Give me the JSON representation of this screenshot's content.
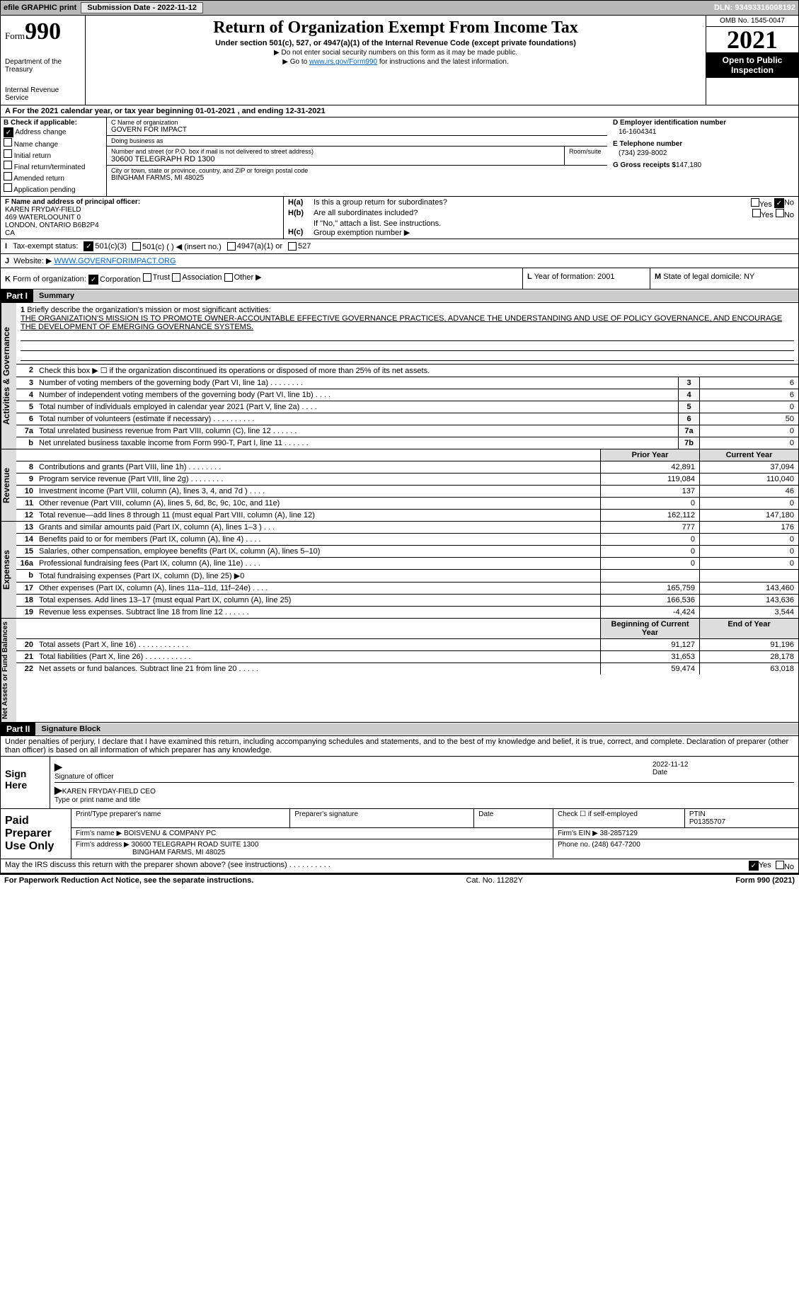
{
  "topbar": {
    "efile": "efile GRAPHIC print",
    "submission_label": "Submission Date - 2022-11-12",
    "dln": "DLN: 93493316008192"
  },
  "header": {
    "form_prefix": "Form",
    "form_number": "990",
    "dept": "Department of the Treasury",
    "irs": "Internal Revenue Service",
    "title": "Return of Organization Exempt From Income Tax",
    "subtitle": "Under section 501(c), 527, or 4947(a)(1) of the Internal Revenue Code (except private foundations)",
    "note1": "▶ Do not enter social security numbers on this form as it may be made public.",
    "note2_pre": "▶ Go to ",
    "note2_link": "www.irs.gov/Form990",
    "note2_post": " for instructions and the latest information.",
    "omb": "OMB No. 1545-0047",
    "year": "2021",
    "open_public": "Open to Public Inspection"
  },
  "row_a": "A For the 2021 calendar year, or tax year beginning 01-01-2021    , and ending 12-31-2021",
  "col_b": {
    "hdr": "B Check if applicable:",
    "items": [
      "Address change",
      "Name change",
      "Initial return",
      "Final return/terminated",
      "Amended return",
      "Application pending"
    ],
    "checked_index": 0
  },
  "col_c": {
    "name_label": "C Name of organization",
    "name": "GOVERN FOR IMPACT",
    "dba_label": "Doing business as",
    "dba": "",
    "street_label": "Number and street (or P.O. box if mail is not delivered to street address)",
    "street": "30600 TELEGRAPH RD 1300",
    "room_label": "Room/suite",
    "city_label": "City or town, state or province, country, and ZIP or foreign postal code",
    "city": "BINGHAM FARMS, MI  48025"
  },
  "col_d": {
    "ein_label": "D Employer identification number",
    "ein": "16-1604341",
    "phone_label": "E Telephone number",
    "phone": "(734) 239-8002",
    "gross_label": "G Gross receipts $",
    "gross": "147,180"
  },
  "col_f": {
    "label": "F  Name and address of principal officer:",
    "line1": "KAREN FRYDAY-FIELD",
    "line2": "469 WATERLOOUNIT 0",
    "line3": "LONDON, ONTARIO  B6B2P4",
    "line4": "CA"
  },
  "col_h": {
    "a_label": "H(a)",
    "a_txt": "Is this a group return for subordinates?",
    "a_yes": "Yes",
    "a_no": "No",
    "b_label": "H(b)",
    "b_txt": "Are all subordinates included?",
    "b_note": "If \"No,\" attach a list. See instructions.",
    "c_label": "H(c)",
    "c_txt": "Group exemption number ▶"
  },
  "row_i": {
    "label": "I",
    "txt": "Tax-exempt status:",
    "opt1": "501(c)(3)",
    "opt2": "501(c) (    ) ◀ (insert no.)",
    "opt3": "4947(a)(1) or",
    "opt4": "527"
  },
  "row_j": {
    "label": "J",
    "txt": "Website: ▶ ",
    "url": "WWW.GOVERNFORIMPACT.ORG"
  },
  "row_k": {
    "label": "K",
    "txt": "Form of organization:",
    "opts": [
      "Corporation",
      "Trust",
      "Association",
      "Other ▶"
    ]
  },
  "row_l": {
    "label": "L",
    "txt": "Year of formation: 2001"
  },
  "row_m": {
    "label": "M",
    "txt": "State of legal domicile: NY"
  },
  "part1": {
    "hdr": "Part I",
    "title": "Summary"
  },
  "mission": {
    "num": "1",
    "label": "Briefly describe the organization's mission or most significant activities:",
    "text": "THE ORGANIZATION'S MISSION IS TO PROMOTE OWNER-ACCOUNTABLE EFFECTIVE GOVERNANCE PRACTICES, ADVANCE THE UNDERSTANDING AND USE OF POLICY GOVERNANCE, AND ENCOURAGE THE DEVELOPMENT OF EMERGING GOVERNANCE SYSTEMS."
  },
  "activities": {
    "vtab": "Activities & Governance",
    "lines": [
      {
        "n": "2",
        "t": "Check this box ▶ ☐  if the organization discontinued its operations or disposed of more than 25% of its net assets."
      },
      {
        "n": "3",
        "t": "Number of voting members of the governing body (Part VI, line 1a)   .    .    .    .    .    .    .    .",
        "box": "3",
        "v": "6"
      },
      {
        "n": "4",
        "t": "Number of independent voting members of the governing body (Part VI, line 1b)   .    .    .    .",
        "box": "4",
        "v": "6"
      },
      {
        "n": "5",
        "t": "Total number of individuals employed in calendar year 2021 (Part V, line 2a)   .    .    .    .",
        "box": "5",
        "v": "0"
      },
      {
        "n": "6",
        "t": "Total number of volunteers (estimate if necessary)    .    .    .    .    .    .    .    .    .    .",
        "box": "6",
        "v": "50"
      },
      {
        "n": "7a",
        "t": "Total unrelated business revenue from Part VIII, column (C), line 12   .    .    .    .    .    .",
        "box": "7a",
        "v": "0"
      },
      {
        "n": "b",
        "t": "Net unrelated business taxable income from Form 990-T, Part I, line 11   .    .    .    .    .    .",
        "box": "7b",
        "v": "0"
      }
    ]
  },
  "revenue": {
    "vtab": "Revenue",
    "hdr_py": "Prior Year",
    "hdr_cy": "Current Year",
    "lines": [
      {
        "n": "8",
        "t": "Contributions and grants (Part VIII, line 1h)   .    .    .    .    .    .    .    .",
        "py": "42,891",
        "cy": "37,094"
      },
      {
        "n": "9",
        "t": "Program service revenue (Part VIII, line 2g)    .    .    .    .    .    .    .    .",
        "py": "119,084",
        "cy": "110,040"
      },
      {
        "n": "10",
        "t": "Investment income (Part VIII, column (A), lines 3, 4, and 7d )   .    .    .    .",
        "py": "137",
        "cy": "46"
      },
      {
        "n": "11",
        "t": "Other revenue (Part VIII, column (A), lines 5, 6d, 8c, 9c, 10c, and 11e)",
        "py": "0",
        "cy": "0"
      },
      {
        "n": "12",
        "t": "Total revenue—add lines 8 through 11 (must equal Part VIII, column (A), line 12)",
        "py": "162,112",
        "cy": "147,180"
      }
    ]
  },
  "expenses": {
    "vtab": "Expenses",
    "lines": [
      {
        "n": "13",
        "t": "Grants and similar amounts paid (Part IX, column (A), lines 1–3 )   .    .    .",
        "py": "777",
        "cy": "176"
      },
      {
        "n": "14",
        "t": "Benefits paid to or for members (Part IX, column (A), line 4)   .    .    .    .",
        "py": "0",
        "cy": "0"
      },
      {
        "n": "15",
        "t": "Salaries, other compensation, employee benefits (Part IX, column (A), lines 5–10)",
        "py": "0",
        "cy": "0"
      },
      {
        "n": "16a",
        "t": "Professional fundraising fees (Part IX, column (A), line 11e)   .    .    .    .",
        "py": "0",
        "cy": "0"
      },
      {
        "n": "b",
        "t": "Total fundraising expenses (Part IX, column (D), line 25) ▶0",
        "py": "",
        "cy": ""
      },
      {
        "n": "17",
        "t": "Other expenses (Part IX, column (A), lines 11a–11d, 11f–24e)   .    .    .    .",
        "py": "165,759",
        "cy": "143,460"
      },
      {
        "n": "18",
        "t": "Total expenses. Add lines 13–17 (must equal Part IX, column (A), line 25)",
        "py": "166,536",
        "cy": "143,636"
      },
      {
        "n": "19",
        "t": "Revenue less expenses. Subtract line 18 from line 12   .    .    .    .    .    .",
        "py": "-4,424",
        "cy": "3,544"
      }
    ]
  },
  "netassets": {
    "vtab": "Net Assets or Fund Balances",
    "hdr_py": "Beginning of Current Year",
    "hdr_cy": "End of Year",
    "lines": [
      {
        "n": "20",
        "t": "Total assets (Part X, line 16)   .    .    .    .    .    .    .    .    .    .    .    .",
        "py": "91,127",
        "cy": "91,196"
      },
      {
        "n": "21",
        "t": "Total liabilities (Part X, line 26)   .    .    .    .    .    .    .    .    .    .    .",
        "py": "31,653",
        "cy": "28,178"
      },
      {
        "n": "22",
        "t": "Net assets or fund balances. Subtract line 21 from line 20   .    .    .    .    .",
        "py": "59,474",
        "cy": "63,018"
      }
    ]
  },
  "part2": {
    "hdr": "Part II",
    "title": "Signature Block"
  },
  "penalty": "Under penalties of perjury, I declare that I have examined this return, including accompanying schedules and statements, and to the best of my knowledge and belief, it is true, correct, and complete. Declaration of preparer (other than officer) is based on all information of which preparer has any knowledge.",
  "sign": {
    "left": "Sign Here",
    "sig_label": "Signature of officer",
    "date_label": "Date",
    "date": "2022-11-12",
    "name": "KAREN FRYDAY-FIELD  CEO",
    "name_label": "Type or print name and title"
  },
  "prep": {
    "left": "Paid Preparer Use Only",
    "h1": "Print/Type preparer's name",
    "h2": "Preparer's signature",
    "h3": "Date",
    "h4_a": "Check ☐ if self-employed",
    "h4_b": "PTIN",
    "ptin": "P01355707",
    "firm_label": "Firm's name    ▶",
    "firm": "BOISVENU & COMPANY PC",
    "ein_label": "Firm's EIN ▶",
    "ein": "38-2857129",
    "addr_label": "Firm's address ▶",
    "addr1": "30600 TELEGRAPH ROAD SUITE 1300",
    "addr2": "BINGHAM FARMS, MI  48025",
    "phone_label": "Phone no.",
    "phone": "(248) 647-7200"
  },
  "discuss": {
    "q": "May the IRS discuss this return with the preparer shown above? (see instructions)    .    .    .    .    .    .    .    .    .    .",
    "yes": "Yes",
    "no": "No"
  },
  "footer": {
    "l": "For Paperwork Reduction Act Notice, see the separate instructions.",
    "m": "Cat. No. 11282Y",
    "r": "Form 990 (2021)"
  }
}
